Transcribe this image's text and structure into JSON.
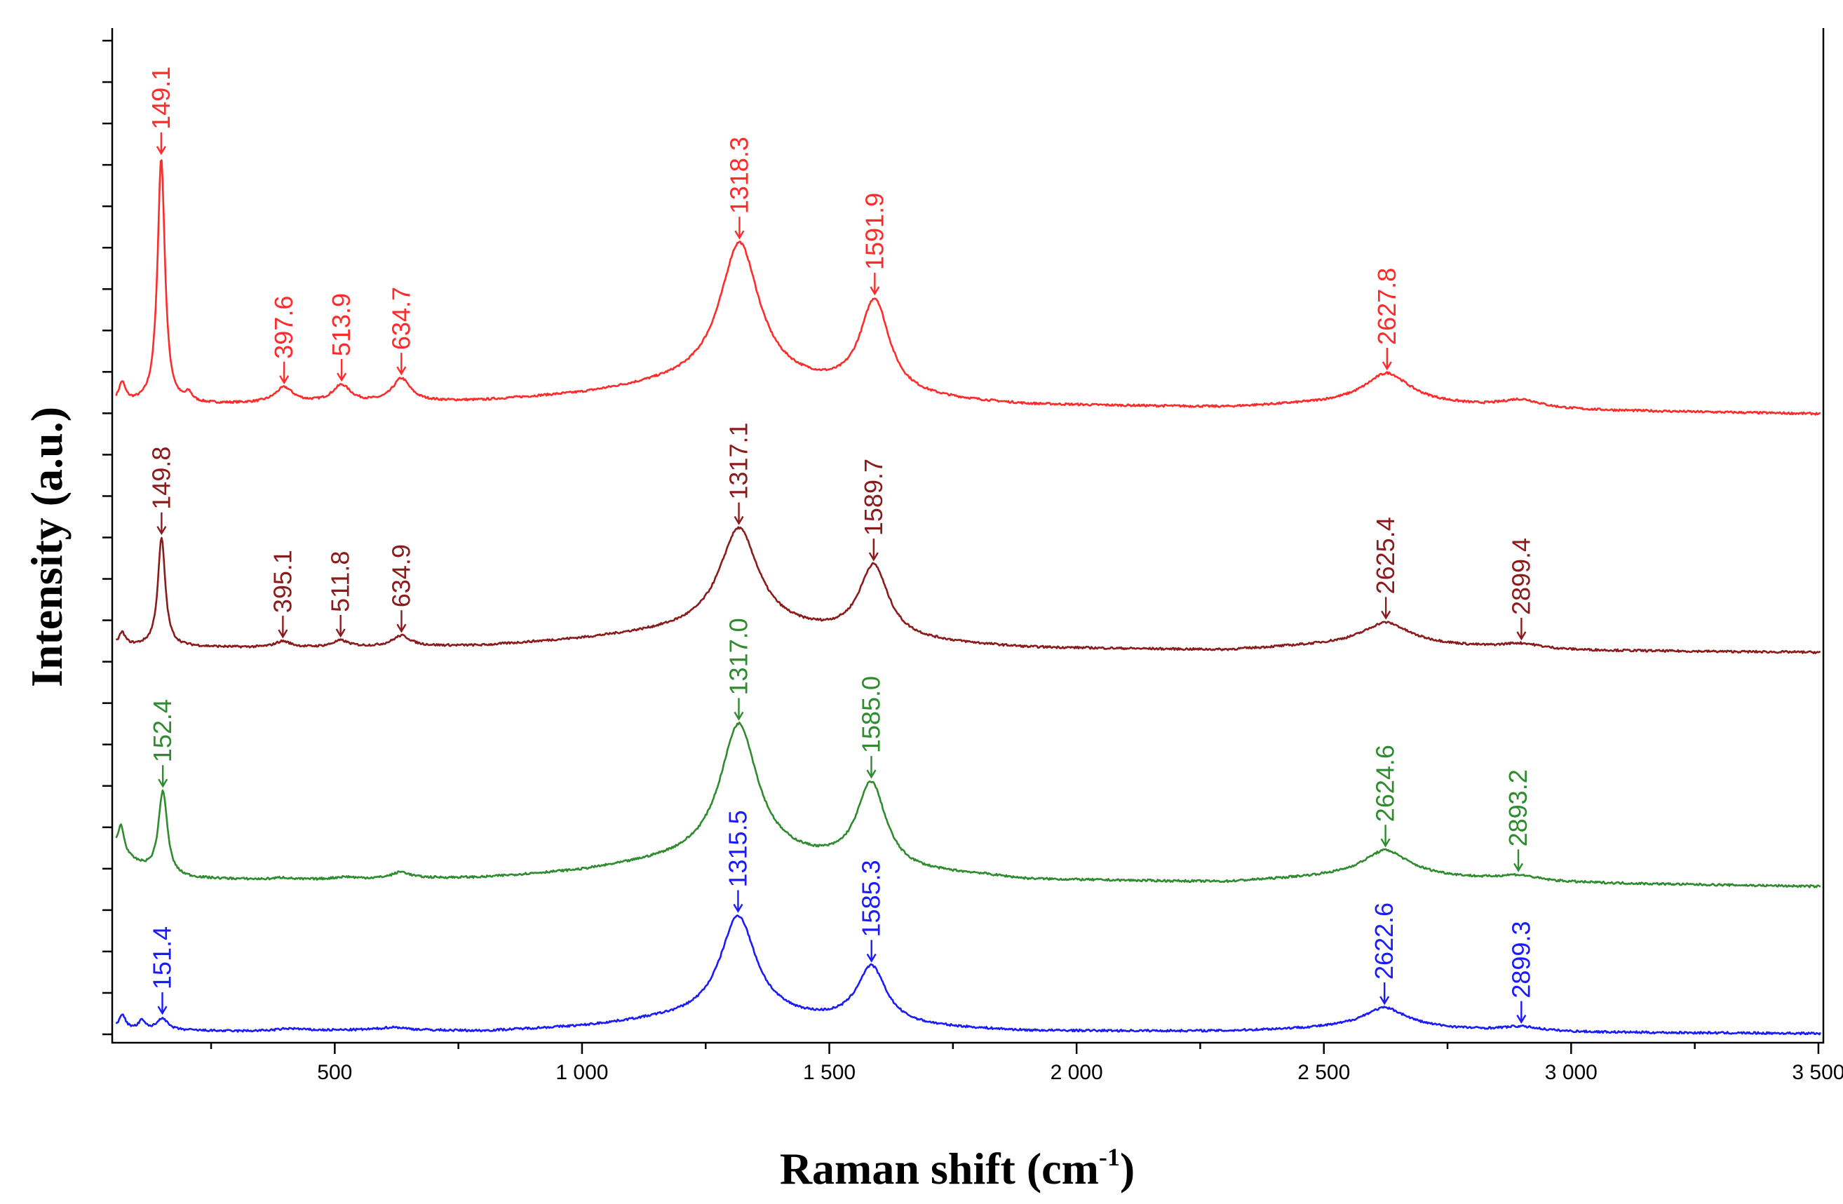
{
  "chart_data": {
    "type": "line",
    "title": "",
    "xlabel": "Raman shift (cm",
    "xlabel_sup": "-1",
    "xlabel_end": ")",
    "ylabel": "Intensity (a.u.)",
    "xlim": [
      50,
      3510
    ],
    "x_ticks": [
      {
        "value": 500,
        "label": "500"
      },
      {
        "value": 1000,
        "label": "1 000"
      },
      {
        "value": 1500,
        "label": "1 500"
      },
      {
        "value": 2000,
        "label": "2 000"
      },
      {
        "value": 2500,
        "label": "2 500"
      },
      {
        "value": 3000,
        "label": "3 000"
      },
      {
        "value": 3500,
        "label": "3 500"
      }
    ],
    "ylim": [
      0,
      23.5
    ],
    "y_minor_ticks": 24,
    "series": [
      {
        "name": "red",
        "color": "#ff2a2a",
        "baseline": 14.6,
        "background": [
          [
            60,
            0.25
          ],
          [
            150,
            0.2
          ],
          [
            400,
            0.25
          ],
          [
            600,
            0.25
          ],
          [
            800,
            0.3
          ],
          [
            1000,
            0.45
          ],
          [
            1150,
            0.65
          ],
          [
            1318,
            0.85
          ],
          [
            1500,
            0.55
          ],
          [
            1650,
            0.35
          ],
          [
            1900,
            0.2
          ],
          [
            2300,
            0.15
          ],
          [
            2630,
            0.3
          ],
          [
            2900,
            0.1
          ],
          [
            3510,
            0.0
          ]
        ],
        "peaks": [
          {
            "center": 149.1,
            "height": 5.8,
            "width": 9,
            "label": "149.1"
          },
          {
            "center": 397.6,
            "height": 0.35,
            "width": 22,
            "label": "397.6"
          },
          {
            "center": 513.9,
            "height": 0.4,
            "width": 22,
            "label": "513.9"
          },
          {
            "center": 634.7,
            "height": 0.55,
            "width": 22,
            "label": "634.7"
          },
          {
            "center": 1318.3,
            "height": 3.15,
            "width": 48,
            "label": "1318.3"
          },
          {
            "center": 1591.9,
            "height": 2.2,
            "width": 36,
            "label": "1591.9"
          },
          {
            "center": 2627.8,
            "height": 0.65,
            "width": 55,
            "label": "2627.8"
          },
          {
            "center": 2899.4,
            "height": 0.22,
            "width": 50,
            "label": ""
          },
          {
            "center": 70,
            "height": 0.45,
            "width": 8,
            "label": ""
          },
          {
            "center": 205,
            "height": 0.2,
            "width": 8,
            "label": ""
          }
        ]
      },
      {
        "name": "maroon",
        "color": "#8b1a1a",
        "baseline": 9.0,
        "background": [
          [
            60,
            0.15
          ],
          [
            400,
            0.1
          ],
          [
            800,
            0.15
          ],
          [
            1000,
            0.3
          ],
          [
            1150,
            0.45
          ],
          [
            1317,
            0.6
          ],
          [
            1500,
            0.4
          ],
          [
            1650,
            0.25
          ],
          [
            1900,
            0.1
          ],
          [
            2300,
            0.05
          ],
          [
            2625,
            0.25
          ],
          [
            2900,
            0.05
          ],
          [
            3510,
            0.0
          ]
        ],
        "peaks": [
          {
            "center": 149.8,
            "height": 2.55,
            "width": 9,
            "label": "149.8"
          },
          {
            "center": 395.1,
            "height": 0.15,
            "width": 20,
            "label": "395.1"
          },
          {
            "center": 511.8,
            "height": 0.15,
            "width": 20,
            "label": "511.8"
          },
          {
            "center": 634.9,
            "height": 0.25,
            "width": 22,
            "label": "634.9"
          },
          {
            "center": 1317.1,
            "height": 2.3,
            "width": 48,
            "label": "1317.1"
          },
          {
            "center": 1589.7,
            "height": 1.7,
            "width": 36,
            "label": "1589.7"
          },
          {
            "center": 2625.4,
            "height": 0.45,
            "width": 55,
            "label": "2625.4"
          },
          {
            "center": 2899.4,
            "height": 0.15,
            "width": 50,
            "label": "2899.4"
          },
          {
            "center": 70,
            "height": 0.3,
            "width": 8,
            "label": ""
          }
        ]
      },
      {
        "name": "green",
        "color": "#2e8b2e",
        "baseline": 3.5,
        "background": [
          [
            60,
            0.9
          ],
          [
            90,
            0.6
          ],
          [
            150,
            0.2
          ],
          [
            400,
            0.15
          ],
          [
            800,
            0.2
          ],
          [
            1000,
            0.35
          ],
          [
            1150,
            0.55
          ],
          [
            1317,
            0.75
          ],
          [
            1500,
            0.5
          ],
          [
            1650,
            0.3
          ],
          [
            1800,
            0.25
          ],
          [
            1900,
            0.15
          ],
          [
            2300,
            0.1
          ],
          [
            2625,
            0.3
          ],
          [
            2900,
            0.1
          ],
          [
            3510,
            0.0
          ]
        ],
        "peaks": [
          {
            "center": 152.4,
            "height": 2.05,
            "width": 11,
            "label": "152.4"
          },
          {
            "center": 395.0,
            "height": 0.05,
            "width": 20,
            "label": ""
          },
          {
            "center": 520.0,
            "height": 0.05,
            "width": 25,
            "label": ""
          },
          {
            "center": 634.0,
            "height": 0.15,
            "width": 22,
            "label": ""
          },
          {
            "center": 1317.0,
            "height": 3.05,
            "width": 46,
            "label": "1317.0"
          },
          {
            "center": 1585.0,
            "height": 2.0,
            "width": 36,
            "label": "1585.0"
          },
          {
            "center": 2624.6,
            "height": 0.55,
            "width": 55,
            "label": "2624.6"
          },
          {
            "center": 2893.2,
            "height": 0.15,
            "width": 50,
            "label": "2893.2"
          },
          {
            "center": 68,
            "height": 0.6,
            "width": 7,
            "label": ""
          }
        ]
      },
      {
        "name": "blue",
        "color": "#1a1aff",
        "baseline": 0.05,
        "background": [
          [
            60,
            0.1
          ],
          [
            300,
            0.05
          ],
          [
            600,
            0.08
          ],
          [
            800,
            0.05
          ],
          [
            1000,
            0.15
          ],
          [
            1150,
            0.3
          ],
          [
            1315,
            0.4
          ],
          [
            1500,
            0.25
          ],
          [
            1650,
            0.15
          ],
          [
            1900,
            0.05
          ],
          [
            2300,
            0.05
          ],
          [
            2622,
            0.15
          ],
          [
            2900,
            0.03
          ],
          [
            3510,
            0.0
          ]
        ],
        "peaks": [
          {
            "center": 151.4,
            "height": 0.28,
            "width": 12,
            "label": "151.4"
          },
          {
            "center": 410,
            "height": 0.05,
            "width": 30,
            "label": ""
          },
          {
            "center": 620,
            "height": 0.06,
            "width": 30,
            "label": ""
          },
          {
            "center": 1315.5,
            "height": 2.35,
            "width": 44,
            "label": "1315.5"
          },
          {
            "center": 1585.3,
            "height": 1.35,
            "width": 36,
            "label": "1585.3"
          },
          {
            "center": 2622.6,
            "height": 0.45,
            "width": 55,
            "label": "2622.6"
          },
          {
            "center": 2899.3,
            "height": 0.12,
            "width": 50,
            "label": "2899.3"
          },
          {
            "center": 70,
            "height": 0.35,
            "width": 8,
            "label": ""
          },
          {
            "center": 110,
            "height": 0.2,
            "width": 8,
            "label": ""
          }
        ]
      }
    ]
  }
}
